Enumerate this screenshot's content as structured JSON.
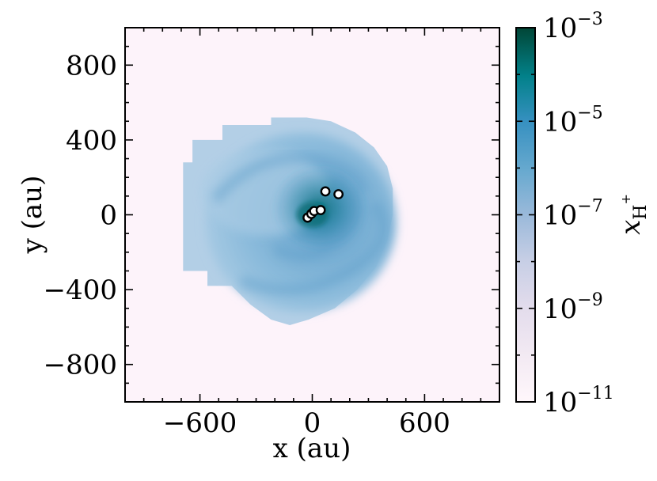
{
  "chart_data": {
    "type": "heatmap",
    "title": "",
    "xlabel": "x (au)",
    "ylabel": "y (au)",
    "xlim": [
      -1000,
      1000
    ],
    "ylim": [
      -1000,
      1000
    ],
    "xticks": [
      -600,
      0,
      600
    ],
    "xtick_labels": [
      "−600",
      "0",
      "600"
    ],
    "yticks": [
      800,
      400,
      0,
      -400,
      -800
    ],
    "ytick_labels": [
      "800",
      "400",
      "0",
      "−400",
      "−800"
    ],
    "colorbar": {
      "label": "x_{H+}",
      "label_main": "x",
      "label_sub": "H",
      "label_sup": "+",
      "scale": "log",
      "range": [
        1e-11,
        0.001
      ],
      "tick_values": [
        0.001,
        1e-05,
        1e-07,
        1e-09,
        1e-11
      ],
      "tick_bases": [
        "10",
        "10",
        "10",
        "10",
        "10"
      ],
      "tick_exps": [
        "−3",
        "−5",
        "−7",
        "−9",
        "−11"
      ],
      "colormap": "PuBuGn",
      "colors": [
        "#fff7fb",
        "#d0d1e6",
        "#67a9cf",
        "#1c9099",
        "#014636"
      ]
    },
    "background_value": 1e-11,
    "background_color": "#fdf3fa",
    "disk_extent_au": {
      "x": [
        -690,
        430
      ],
      "y": [
        -590,
        520
      ]
    },
    "disk_typical_value": 1e-07,
    "sink_particles": [
      {
        "x": -25,
        "y": -15
      },
      {
        "x": -5,
        "y": 5
      },
      {
        "x": 10,
        "y": 20
      },
      {
        "x": 45,
        "y": 25
      },
      {
        "x": 70,
        "y": 125
      },
      {
        "x": 140,
        "y": 110
      }
    ],
    "grid": false
  }
}
